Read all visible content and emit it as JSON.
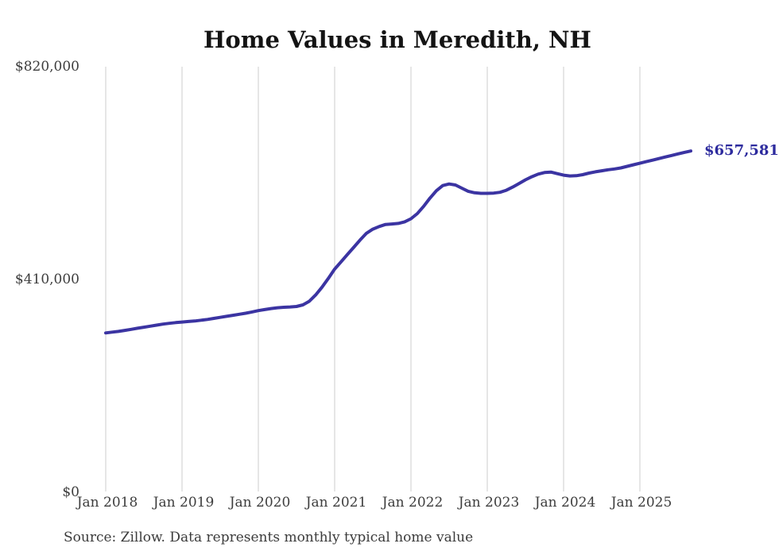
{
  "title": "Home Values in Meredith, NH",
  "source_note": "Source: Zillow. Data represents monthly typical home value",
  "end_label": "$657,581",
  "colors": {
    "line": "#3b34a2",
    "end_label": "#2d2b9e",
    "grid": "#cccccc",
    "title_text": "#141414",
    "axis_text": "#3d3d3d",
    "source_text": "#3b3b3b",
    "background": "#ffffff"
  },
  "chart_data": {
    "type": "line",
    "title": "Home Values in Meredith, NH",
    "xlabel": "",
    "ylabel": "",
    "ylim": [
      0,
      820000
    ],
    "grid": "vertical-only",
    "legend": "none",
    "x_start_month": "Jan 2018",
    "x_end_month": "Sep 2025",
    "x_ticks": [
      "Jan 2018",
      "Jan 2019",
      "Jan 2020",
      "Jan 2021",
      "Jan 2022",
      "Jan 2023",
      "Jan 2024",
      "Jan 2025"
    ],
    "y_ticks": [
      {
        "label": "$820,000",
        "value": 820000
      },
      {
        "label": "$410,000",
        "value": 410000
      },
      {
        "label": "$0",
        "value": 0
      }
    ],
    "final_value": 657581,
    "series": [
      {
        "name": "Monthly typical home value",
        "values": [
          307000,
          308500,
          310000,
          312000,
          314000,
          316000,
          318000,
          320000,
          322000,
          324000,
          325500,
          327000,
          328000,
          329000,
          330000,
          331500,
          333000,
          335000,
          337000,
          339000,
          341000,
          343000,
          345000,
          347500,
          350000,
          352000,
          354000,
          355500,
          356500,
          357000,
          358000,
          361000,
          368000,
          380000,
          395000,
          412000,
          430000,
          444000,
          458000,
          472000,
          486000,
          499000,
          507000,
          512000,
          516000,
          517000,
          518000,
          521000,
          527000,
          537000,
          551000,
          567000,
          581000,
          591000,
          594000,
          592000,
          586000,
          580000,
          577000,
          576000,
          576000,
          576500,
          578000,
          582000,
          588000,
          595000,
          602000,
          608000,
          613000,
          616000,
          617000,
          614000,
          611000,
          609500,
          610000,
          612000,
          615000,
          617500,
          619500,
          621500,
          623000,
          625000,
          628000,
          631000,
          634000,
          637000,
          640000,
          643000,
          646000,
          649000,
          652000,
          655000,
          657581
        ]
      }
    ]
  }
}
